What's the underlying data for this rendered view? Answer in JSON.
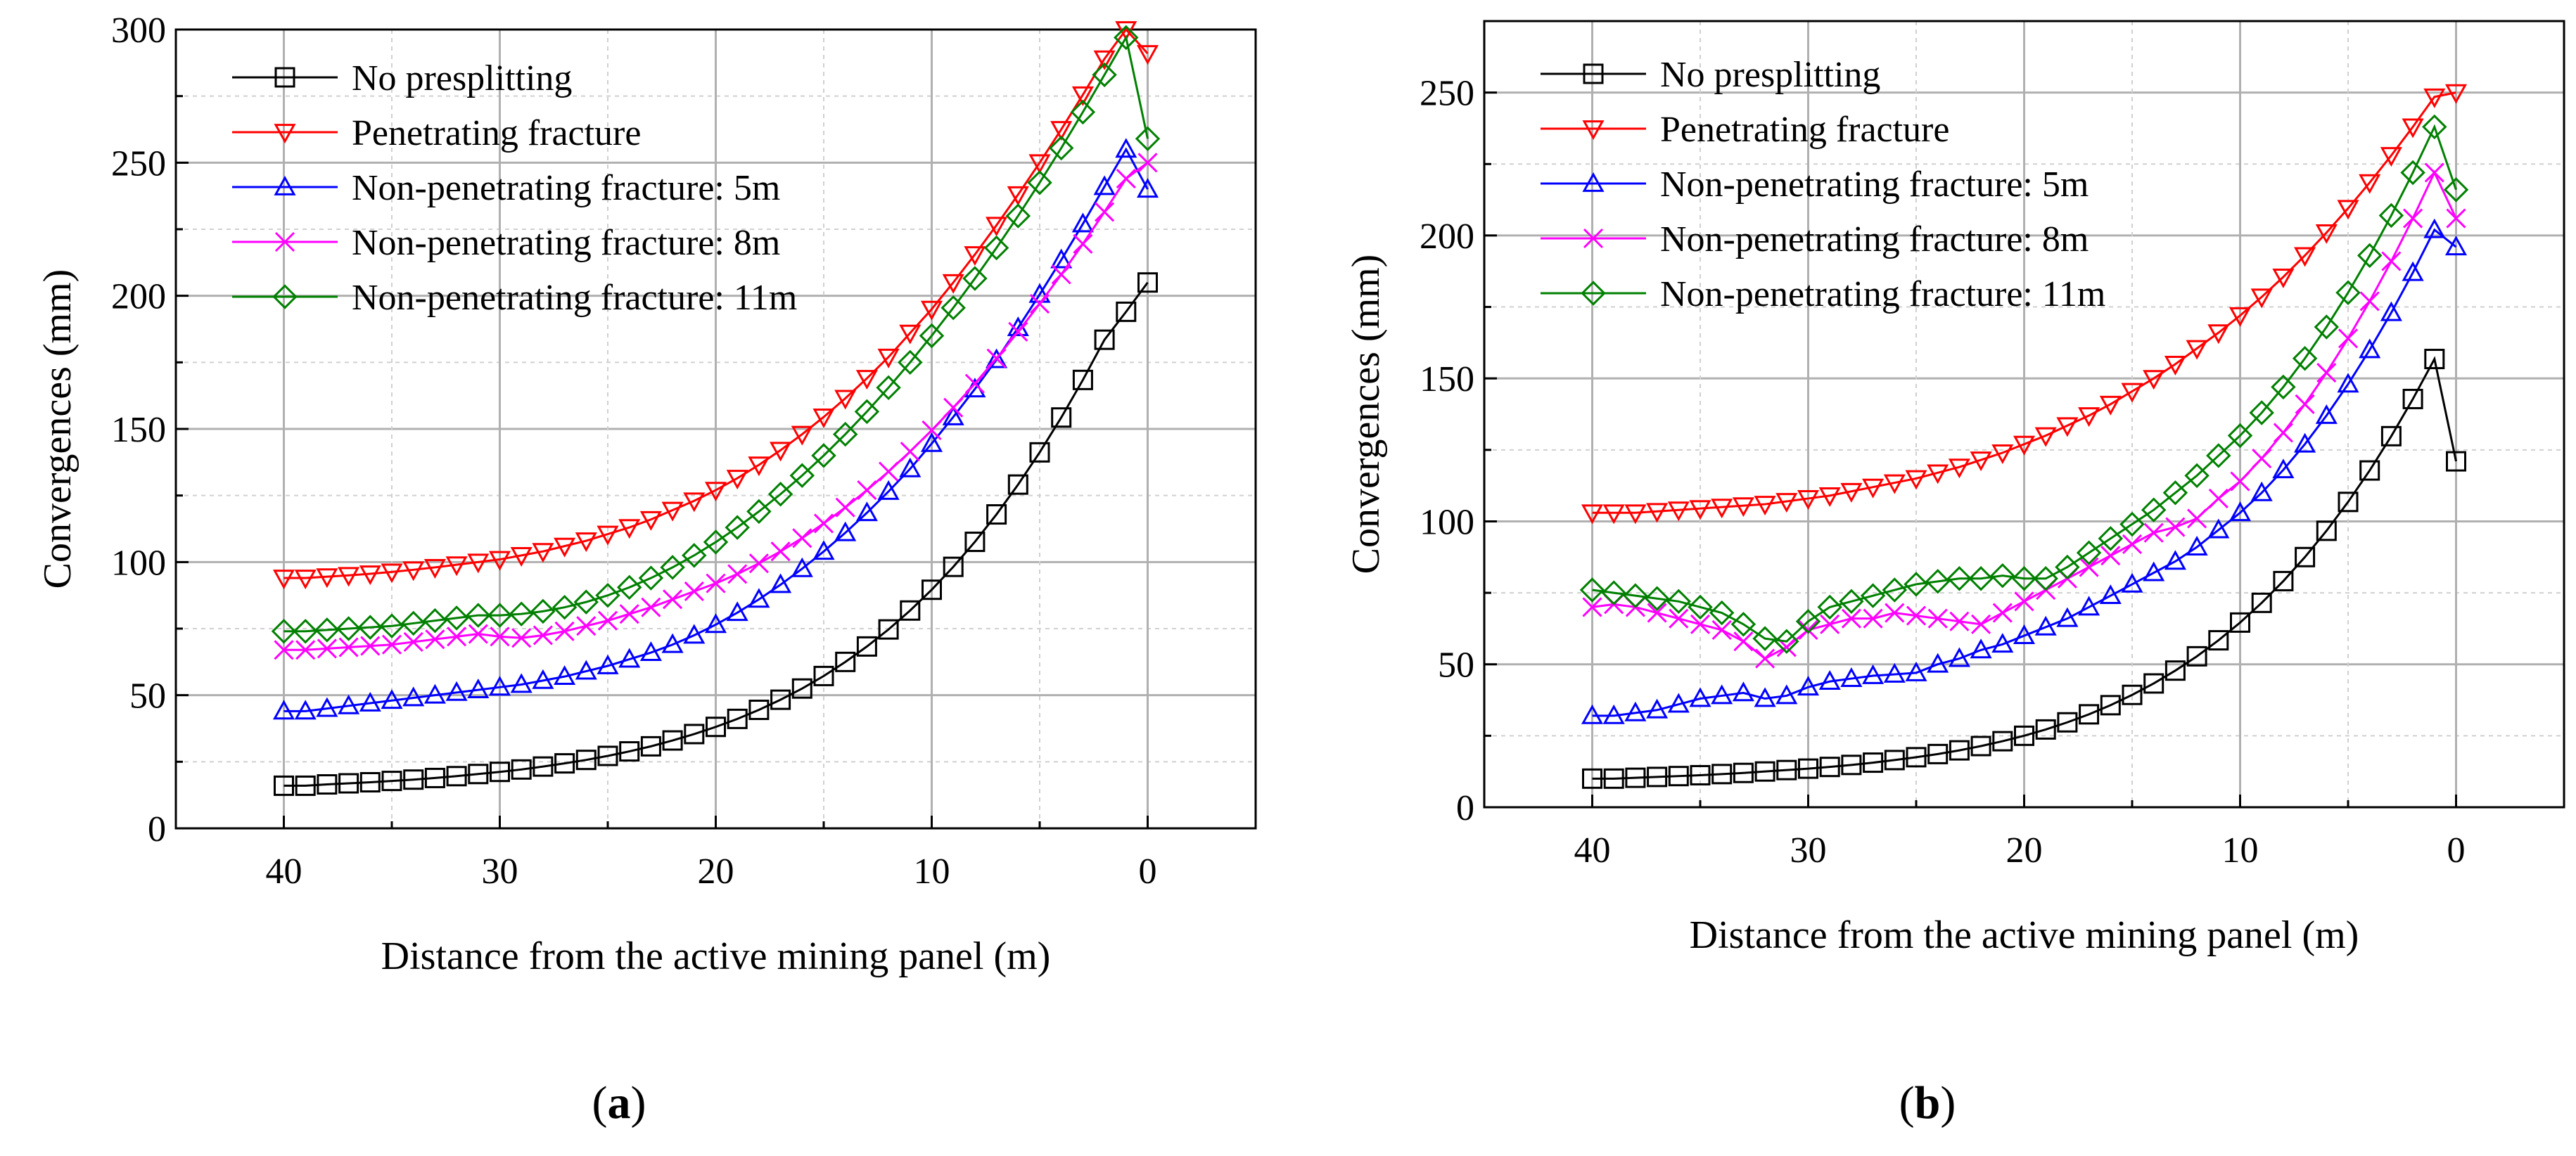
{
  "chart_data": [
    {
      "panel_label": "a",
      "type": "line",
      "xlabel": "Distance from the active mining panel (m)",
      "ylabel": "Convergences (mm)",
      "xlim": [
        45,
        -5
      ],
      "ylim": [
        0,
        300
      ],
      "xticks": [
        40,
        30,
        20,
        10,
        0
      ],
      "yticks": [
        0,
        50,
        100,
        150,
        200,
        250,
        300
      ],
      "grid": true,
      "legend_position": "top-left",
      "x": [
        40,
        39,
        38,
        37,
        36,
        35,
        34,
        33,
        32,
        31,
        30,
        29,
        28,
        27,
        26,
        25,
        24,
        23,
        22,
        21,
        20,
        19,
        18,
        17,
        16,
        15,
        14,
        13,
        12,
        11,
        10,
        9,
        8,
        7,
        6,
        5,
        4,
        3,
        2,
        1,
        0
      ],
      "series": [
        {
          "name": "No presplitting",
          "color": "#000000",
          "marker": "square",
          "values": [
            16,
            16,
            16.5,
            16.9,
            17.3,
            17.8,
            18.3,
            18.9,
            19.6,
            20.4,
            21.2,
            22.1,
            23.2,
            24.4,
            25.7,
            27.2,
            28.9,
            30.8,
            33,
            35.4,
            38.1,
            41.1,
            44.5,
            48.3,
            52.5,
            57.2,
            62.5,
            68.3,
            74.7,
            81.8,
            89.6,
            98.2,
            107.6,
            117.9,
            129.1,
            141.2,
            154.3,
            168.4,
            183.5,
            194,
            205
          ]
        },
        {
          "name": "Penetrating fracture",
          "color": "#ff0000",
          "marker": "triangle-down",
          "values": [
            94,
            94,
            94.5,
            95,
            95.6,
            96.3,
            97.1,
            98,
            99,
            100,
            101,
            102.5,
            104,
            106,
            108,
            110.5,
            113,
            116,
            119.5,
            123,
            127,
            131.5,
            136.5,
            142,
            148,
            154.5,
            161.5,
            169,
            177,
            186,
            195,
            205,
            215.5,
            226.5,
            238,
            250,
            262.5,
            275.5,
            289,
            303,
            291
          ]
        },
        {
          "name": "Non-penetrating fracture: 5m",
          "color": "#0000ff",
          "marker": "triangle-up",
          "values": [
            44,
            44,
            45,
            46,
            47,
            48,
            49,
            50,
            51,
            52,
            53,
            54,
            55.5,
            57,
            59,
            61,
            63.5,
            66,
            69,
            72.5,
            76.5,
            81,
            86,
            91.5,
            97.5,
            104,
            111,
            118.5,
            126.5,
            135,
            144.5,
            154.5,
            165,
            176,
            188,
            200.5,
            213.5,
            227,
            241,
            255,
            240
          ]
        },
        {
          "name": "Non-penetrating fracture: 8m",
          "color": "#ff00ff",
          "marker": "x",
          "values": [
            67,
            67,
            67.5,
            68,
            68.5,
            69,
            70,
            71,
            72,
            73,
            72,
            71.5,
            72.5,
            74,
            76,
            78,
            80.5,
            83,
            86,
            89,
            92,
            95.5,
            99.5,
            104,
            109,
            114.5,
            120.5,
            127,
            134,
            141.5,
            149.5,
            158,
            167,
            176.5,
            186.5,
            197,
            208,
            219.5,
            231.5,
            244,
            250
          ]
        },
        {
          "name": "Non-penetrating fracture: 11m",
          "color": "#008000",
          "marker": "diamond",
          "values": [
            74,
            74,
            74.5,
            75,
            75.5,
            76,
            77,
            78,
            79,
            80,
            80,
            80.5,
            81.5,
            83,
            85,
            87.5,
            90.5,
            94,
            98,
            102.5,
            107.5,
            113,
            119,
            125.5,
            132.5,
            140,
            148,
            156.5,
            165.5,
            175,
            185,
            195.5,
            206.5,
            218,
            230,
            242.5,
            255.5,
            269,
            283,
            297,
            259
          ]
        }
      ]
    },
    {
      "panel_label": "b",
      "type": "line",
      "xlabel": "Distance from the active mining panel (m)",
      "ylabel": "Convergences (mm)",
      "xlim": [
        45,
        -5
      ],
      "ylim": [
        0,
        275
      ],
      "xticks": [
        40,
        30,
        20,
        10,
        0
      ],
      "yticks": [
        0,
        50,
        100,
        150,
        200,
        250
      ],
      "grid": true,
      "legend_position": "top-left",
      "x": [
        40,
        39,
        38,
        37,
        36,
        35,
        34,
        33,
        32,
        31,
        30,
        29,
        28,
        27,
        26,
        25,
        24,
        23,
        22,
        21,
        20,
        19,
        18,
        17,
        16,
        15,
        14,
        13,
        12,
        11,
        10,
        9,
        8,
        7,
        6,
        5,
        4,
        3,
        2,
        1,
        0
      ],
      "series": [
        {
          "name": "No presplitting",
          "color": "#000000",
          "marker": "square",
          "values": [
            10,
            10,
            10.3,
            10.6,
            10.9,
            11.2,
            11.6,
            12,
            12.5,
            13,
            13.5,
            14.1,
            14.8,
            15.6,
            16.5,
            17.5,
            18.6,
            19.9,
            21.4,
            23.1,
            25,
            27.2,
            29.7,
            32.5,
            35.7,
            39.3,
            43.3,
            47.8,
            52.8,
            58.4,
            64.6,
            71.5,
            79.1,
            87.5,
            96.7,
            106.8,
            117.8,
            129.8,
            142.8,
            156.8,
            121
          ]
        },
        {
          "name": "Penetrating fracture",
          "color": "#ff0000",
          "marker": "triangle-down",
          "values": [
            103,
            103,
            103,
            103.5,
            104,
            104.5,
            105,
            105.5,
            106,
            107,
            108,
            109,
            110.5,
            112,
            113.5,
            115,
            117,
            119,
            121.5,
            124,
            127,
            130,
            133.5,
            137,
            141,
            145.5,
            150,
            155,
            160.5,
            166,
            172,
            178.5,
            185.5,
            193,
            201,
            209.5,
            218.5,
            228,
            238,
            248.5,
            250
          ]
        },
        {
          "name": "Non-penetrating fracture: 5m",
          "color": "#0000ff",
          "marker": "triangle-up",
          "values": [
            32,
            32,
            33,
            34,
            36,
            38,
            39,
            40,
            38,
            39,
            42,
            44,
            45,
            46,
            46.5,
            47,
            50,
            52,
            55,
            57,
            60,
            63,
            66,
            70,
            74,
            78,
            82,
            86,
            91,
            97,
            103,
            110,
            118,
            127,
            137,
            148,
            160,
            173,
            187,
            202,
            196
          ]
        },
        {
          "name": "Non-penetrating fracture: 8m",
          "color": "#ff00ff",
          "marker": "x",
          "values": [
            70,
            71,
            70,
            68,
            66,
            64,
            62,
            58,
            52,
            56,
            62,
            64,
            66,
            66,
            68,
            67,
            66,
            65,
            64,
            68,
            72,
            76,
            80,
            84,
            88,
            92,
            96,
            98,
            101,
            108,
            114,
            122,
            131,
            141,
            152,
            164,
            177,
            191,
            206,
            222,
            206
          ]
        },
        {
          "name": "Non-penetrating fracture: 11m",
          "color": "#008000",
          "marker": "diamond",
          "values": [
            76,
            75,
            74,
            73,
            72,
            70,
            68,
            64,
            59,
            58,
            65,
            70,
            72,
            74,
            76,
            78,
            79,
            80,
            80,
            81,
            80,
            80,
            84,
            89,
            94,
            99,
            104,
            110,
            116,
            123,
            130,
            138,
            147,
            157,
            168,
            180,
            193,
            207,
            222,
            238,
            216
          ]
        }
      ]
    }
  ]
}
